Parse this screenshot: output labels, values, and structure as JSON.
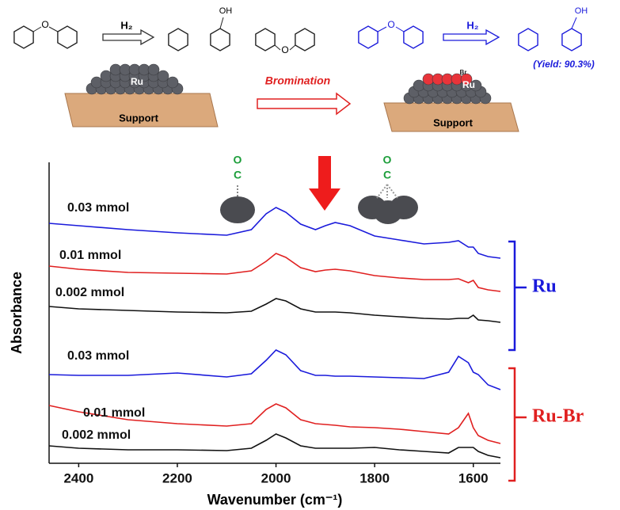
{
  "scheme": {
    "left_reagent": "H₂",
    "ether_o": "O",
    "cyclohexanol_oh": "OH",
    "dicyclohexyl_o": "O",
    "left_metal": "Ru",
    "left_support": "Support",
    "step": "Bromination",
    "right_ether_o": "O",
    "right_reagent": "H₂",
    "phenol_oh": "OH",
    "yield": "(Yield: 90.3%)",
    "bromine": "Br",
    "right_metal": "Ru",
    "right_support": "Support"
  },
  "chart_data": {
    "type": "line",
    "x_label": "Wavenumber (cm⁻¹)",
    "y_label": "Absorbance",
    "x": [
      2460,
      2400,
      2300,
      2200,
      2100,
      2050,
      2020,
      2000,
      1980,
      1950,
      1920,
      1900,
      1880,
      1850,
      1800,
      1750,
      1700,
      1650,
      1630,
      1610,
      1600,
      1590,
      1570,
      1545
    ],
    "xlim": [
      2460,
      1545
    ],
    "xticks": [
      2400,
      2200,
      2000,
      1800,
      1600
    ],
    "ylim": [
      0,
      380
    ],
    "series": [
      {
        "name": "0.03 mmol",
        "color": "#1a1adb",
        "values": [
          303,
          300,
          295,
          291,
          288,
          295,
          315,
          323,
          317,
          302,
          295,
          300,
          304,
          300,
          287,
          282,
          277,
          279,
          281,
          273,
          273,
          265,
          261,
          259
        ]
      },
      {
        "name": "0.01 mmol",
        "color": "#e02020",
        "values": [
          249,
          245,
          241,
          240,
          239,
          243,
          255,
          265,
          260,
          247,
          242,
          244,
          245,
          243,
          237,
          234,
          232,
          232,
          233,
          228,
          231,
          222,
          219,
          217
        ]
      },
      {
        "name": "0.002 mmol",
        "color": "#111111",
        "values": [
          198,
          195,
          193,
          191,
          190,
          192,
          201,
          208,
          205,
          195,
          191,
          191,
          191,
          190,
          187,
          185,
          183,
          182,
          183,
          183,
          187,
          181,
          180,
          178
        ]
      },
      {
        "name": "0.03 mmol",
        "color": "#1a1adb",
        "values": [
          112,
          111,
          111,
          114,
          109,
          113,
          130,
          143,
          137,
          117,
          111,
          111,
          110,
          110,
          109,
          108,
          107,
          115,
          135,
          127,
          115,
          112,
          99,
          93
        ]
      },
      {
        "name": "0.01 mmol",
        "color": "#e02020",
        "values": [
          73,
          65,
          55,
          50,
          47,
          50,
          68,
          75,
          70,
          55,
          50,
          49,
          48,
          46,
          45,
          43,
          40,
          37,
          45,
          63,
          45,
          35,
          29,
          25
        ]
      },
      {
        "name": "0.002 mmol",
        "color": "#111111",
        "values": [
          22,
          19,
          17,
          17,
          16,
          19,
          29,
          37,
          32,
          22,
          19,
          19,
          19,
          19,
          20,
          17,
          15,
          13,
          20,
          20,
          20,
          15,
          10,
          7
        ]
      }
    ],
    "groups": [
      {
        "label": "Ru",
        "color": "#1a1adb"
      },
      {
        "label": "Ru-Br",
        "color": "#e02020"
      }
    ],
    "co_label": [
      "O",
      "C"
    ]
  }
}
